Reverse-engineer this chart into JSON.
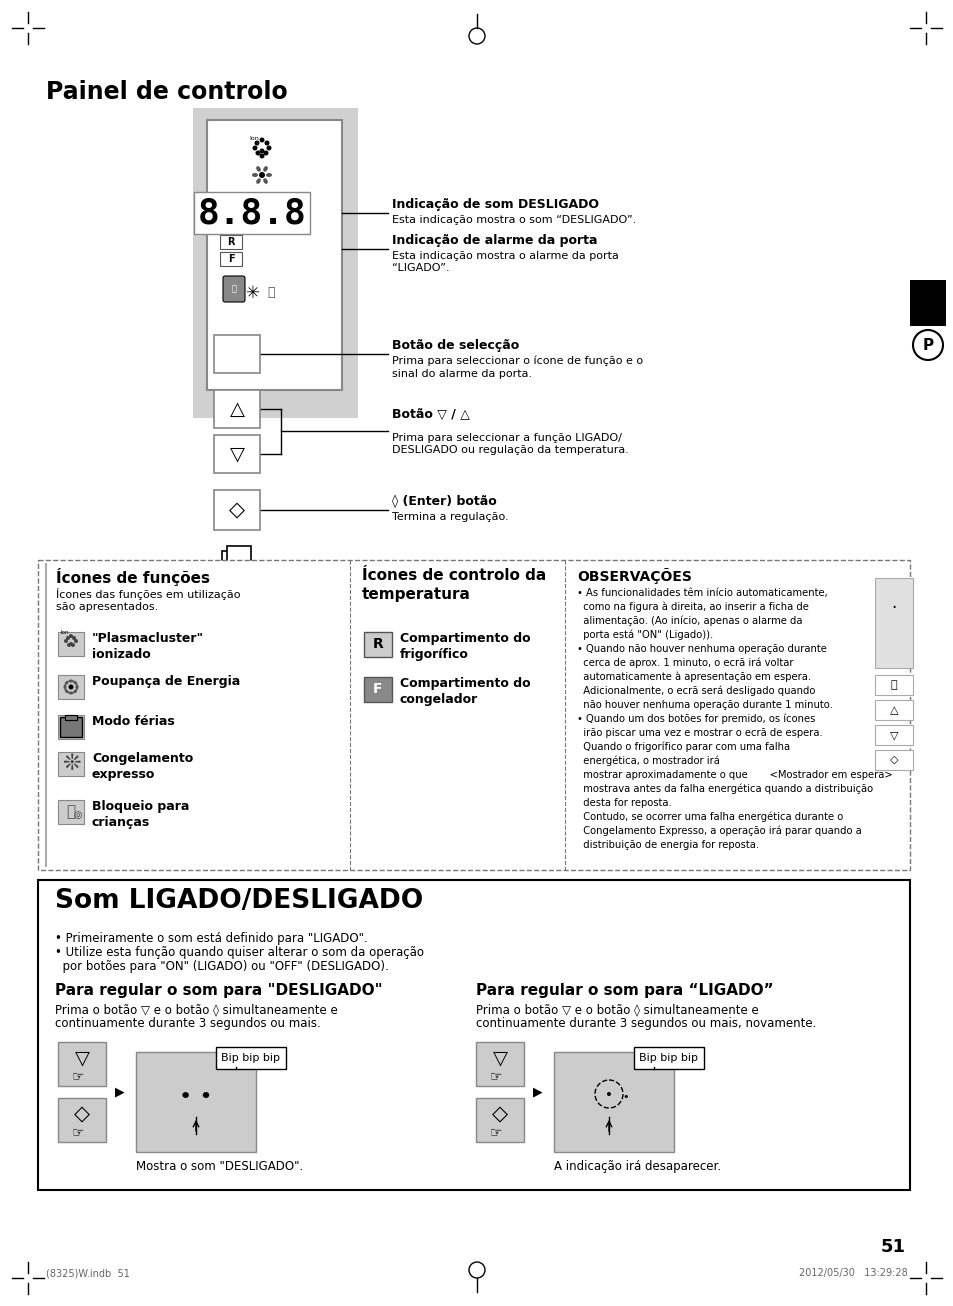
{
  "page_bg": "#ffffff",
  "page_num": "51",
  "bottom_left_text": "(8325)W.indb  51",
  "bottom_right_text": "2012/05/30   13:29:28",
  "title_painel": "Painel de controlo",
  "label_desligado_bold": "Indicação de som DESLIGADO",
  "label_desligado_text": "Esta indicação mostra o som “DESLIGADO”.",
  "label_alarme_bold": "Indicação de alarme da porta",
  "label_alarme_text": "Esta indicação mostra o alarme da porta\n“LIGADO”.",
  "label_seleccao_bold": "Botão de selecção",
  "label_seleccao_text": "Prima para seleccionar o ícone de função e o\nsinal do alarme da porta.",
  "label_botao_bold": "Botão ▽ / △",
  "label_botao_text": "Prima para seleccionar a função LIGADO/\nDESLIGADO ou regulação da temperatura.",
  "label_enter_bold": "◊ (Enter) botão",
  "label_enter_text": "Termina a regulação.",
  "dashed_box_title1": "Ícones de funções",
  "dashed_box_sub1": "Ícones das funções em utilização\nsão apresentados.",
  "dashed_box_title2": "Ícones de controlo da\ntemperatura",
  "temp_icon1_label": "R",
  "temp_icon1_text": "Compartimento do\nfrigorífico",
  "temp_icon2_label": "F",
  "temp_icon2_text": "Compartimento do\ncongelador",
  "obs_title": "OBSERVAÇÕES",
  "obs_line1": "• As funcionalidades têm início automaticamente,",
  "obs_line2": "  como na figura à direita, ao inserir a ficha de",
  "obs_line3": "  alimentação. (Ao início, apenas o alarme da",
  "obs_line4": "  porta está \"ON\" (Ligado)).",
  "obs_line5": "• Quando não houver nenhuma operação durante",
  "obs_line6": "  cerca de aprox. 1 minuto, o ecrã irá voltar",
  "obs_line7": "  automaticamente à apresentação em espera.",
  "obs_line8": "  Adicionalmente, o ecrã será desligado quando",
  "obs_line9": "  não houver nenhuma operação durante 1 minuto.",
  "obs_line10": "• Quando um dos botões for premido, os ícones",
  "obs_line11": "  irão piscar uma vez e mostrar o ecrã de espera.",
  "obs_line12": "  Quando o frigorífico parar com uma falha",
  "obs_line13": "  energética, o mostrador irá",
  "obs_line14": "  mostrar aproximadamente o que       <Mostrador em espera>",
  "obs_line15": "  mostrava antes da falha energética quando a distribuição",
  "obs_line16": "  desta for reposta.",
  "obs_line17": "  Contudo, se ocorrer uma falha energética durante o",
  "obs_line18": "  Congelamento Expresso, a operação irá parar quando a",
  "obs_line19": "  distribuição de energia for reposta.",
  "som_title": "Som LIGADO/DESLIGADO",
  "som_bullet1": "• Primeiramente o som está definido para \"LIGADO\".",
  "som_bullet2": "• Utilize esta função quando quiser alterar o som da operação",
  "som_bullet2b": "  por botões para \"ON\" (LIGADO) ou \"OFF\" (DESLIGADO).",
  "desligado_section_title": "Para regular o som para \"DESLIGADO\"",
  "desligado_section_text1": "Prima o botão ▽ e o botão ◊ simultaneamente e",
  "desligado_section_text2": "continuamente durante 3 segundos ou mais.",
  "desligado_caption": "Mostra o som \"DESLIGADO\".",
  "ligado_section_title": "Para regular o som para “LIGADO”",
  "ligado_section_text1": "Prima o botão ▽ e o botão ◊ simultaneamente e",
  "ligado_section_text2": "continuamente durante 3 segundos ou mais, novamente.",
  "ligado_caption": "A indicação irá desaparecer.",
  "bip_text": "Bip bip bip",
  "p_label": "P",
  "icon1_name": "\"Plasmacluster\"\nionizado",
  "icon2_name": "Poupança de Energia",
  "icon3_name": "Modo férias",
  "icon4_name": "Congelamento\nexpresso",
  "icon5_name": "Bloqueio para\ncrianças"
}
